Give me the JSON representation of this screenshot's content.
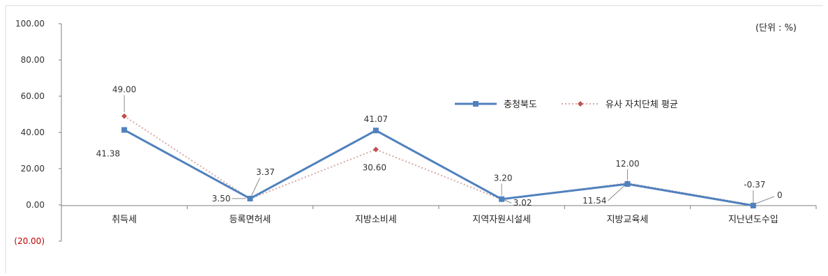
{
  "chart_data": {
    "type": "line",
    "unit_note": "(단위 : %)",
    "categories": [
      "취득세",
      "등록면허세",
      "지방소비세",
      "지역자원시설세",
      "지방교육세",
      "지난년도수입"
    ],
    "ylim": [
      -20,
      100
    ],
    "yticks": [
      {
        "value": 100,
        "label": "100.00"
      },
      {
        "value": 80,
        "label": "80.00"
      },
      {
        "value": 60,
        "label": "60.00"
      },
      {
        "value": 40,
        "label": "40.00"
      },
      {
        "value": 20,
        "label": "20.00"
      },
      {
        "value": 0,
        "label": "0.00"
      },
      {
        "value": -20,
        "label": "(20.00)"
      }
    ],
    "grid": false,
    "legend_position": "right-middle",
    "series": [
      {
        "name": "충청북도",
        "color": "#4f81bd",
        "style": "solid",
        "marker": "square",
        "values": [
          41.38,
          3.5,
          41.07,
          3.2,
          11.54,
          -0.37
        ],
        "labels": [
          "41.38",
          "3.50",
          "41.07",
          "3.20",
          "11.54",
          "-0.37"
        ]
      },
      {
        "name": "유사 자치단체 평균",
        "color": "#c0504d",
        "style": "dotted",
        "marker": "diamond",
        "values": [
          49.0,
          3.37,
          30.6,
          3.02,
          12.0,
          0
        ],
        "labels": [
          "49.00",
          "3.37",
          "30.60",
          "3.02",
          "12.00",
          "0"
        ]
      }
    ]
  }
}
